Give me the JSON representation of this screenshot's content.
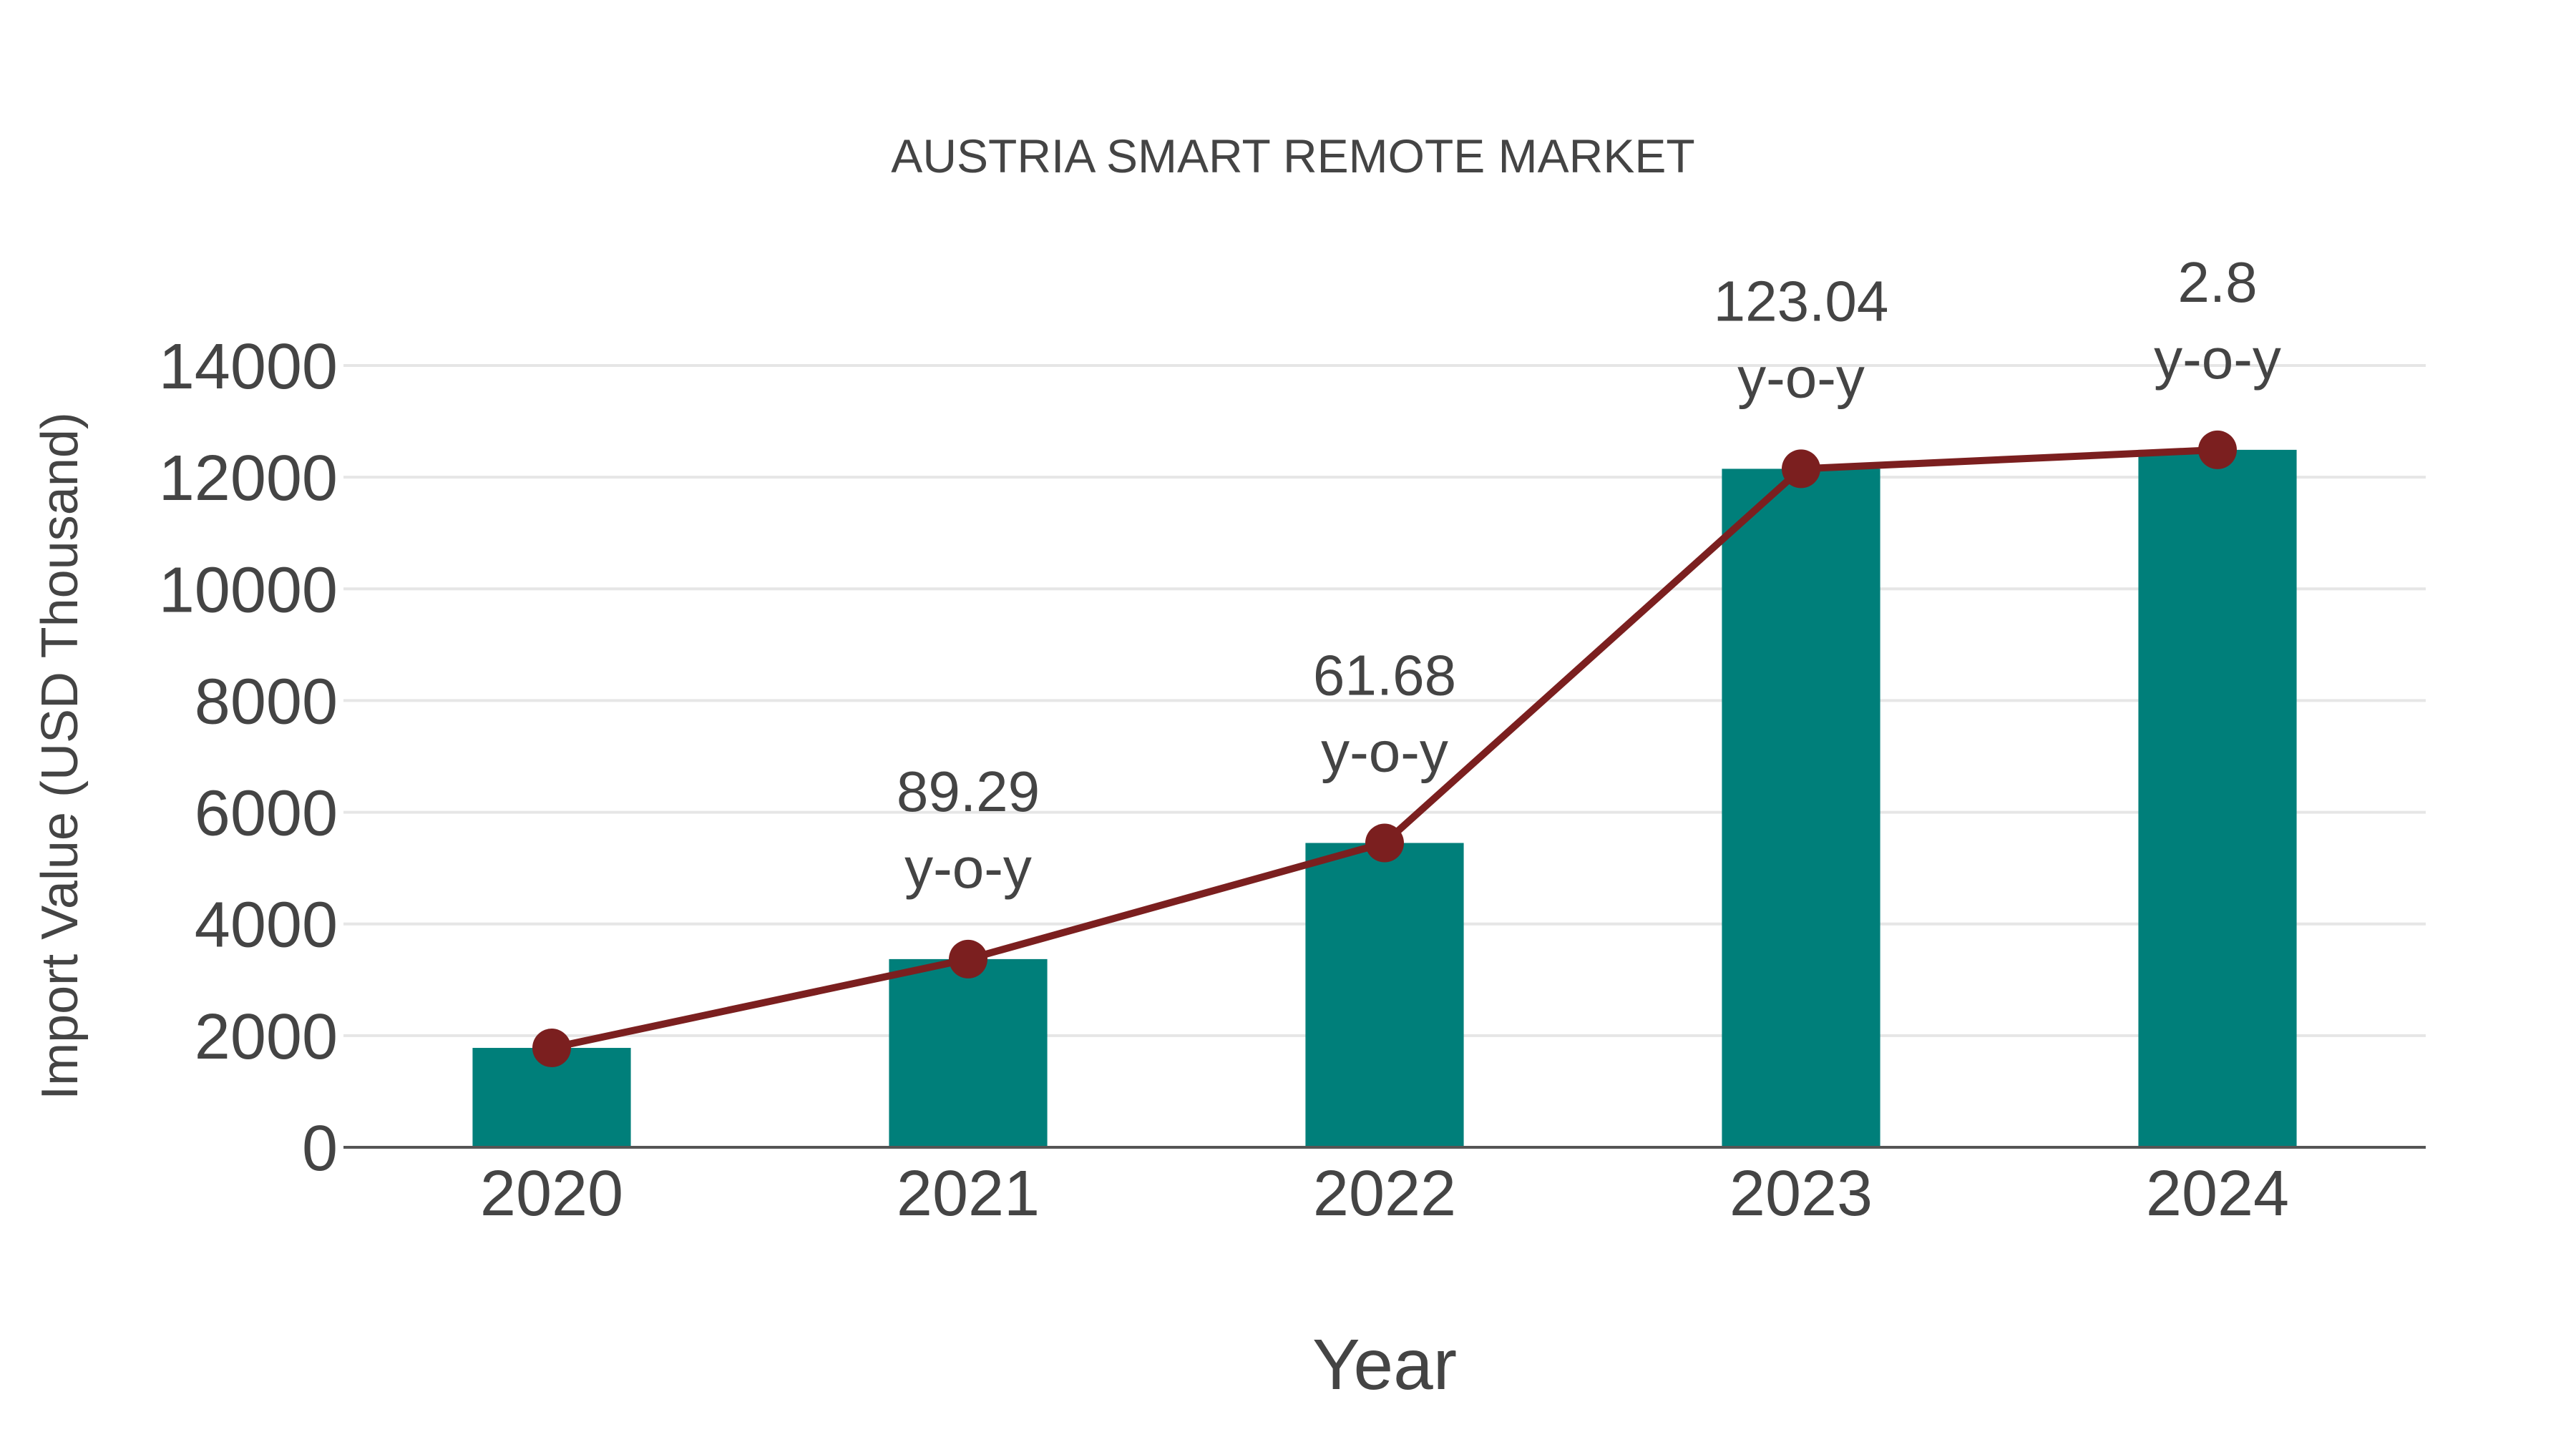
{
  "chart_data": {
    "type": "bar",
    "title": "AUSTRIA SMART REMOTE MARKET",
    "xlabel": "Year",
    "ylabel": "Import Value (USD Thousand)",
    "categories": [
      "2020",
      "2021",
      "2022",
      "2023",
      "2024"
    ],
    "series": [
      {
        "name": "Import Value",
        "type": "bar",
        "color": "#007F7A",
        "values": [
          1780,
          3370,
          5450,
          12150,
          12490
        ]
      },
      {
        "name": "Import Value (line)",
        "type": "line",
        "color": "#7B1F1F",
        "values": [
          1780,
          3370,
          5450,
          12150,
          12490
        ]
      }
    ],
    "annotations": [
      {
        "category": "2021",
        "value": "89.29",
        "suffix": "y-o-y"
      },
      {
        "category": "2022",
        "value": "61.68",
        "suffix": "y-o-y"
      },
      {
        "category": "2023",
        "value": "123.04",
        "suffix": "y-o-y"
      },
      {
        "category": "2024",
        "value": "2.8",
        "suffix": "y-o-y"
      }
    ],
    "yticks": [
      0,
      2000,
      4000,
      6000,
      8000,
      10000,
      12000,
      14000
    ],
    "ylim": [
      0,
      14000
    ],
    "grid": true,
    "legend": "none"
  }
}
